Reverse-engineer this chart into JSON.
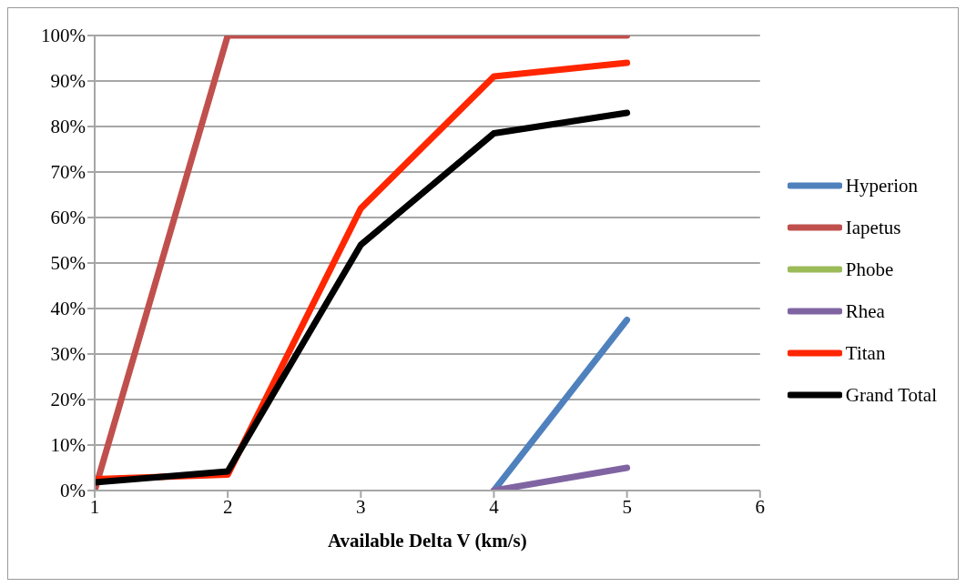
{
  "chart_data": {
    "type": "line",
    "xlabel": "Available Delta V (km/s)",
    "series": [
      {
        "name": "Hyperion",
        "color": "#4f81bd",
        "x": [
          4,
          5
        ],
        "values": [
          0,
          37.5
        ]
      },
      {
        "name": "Iapetus",
        "color": "#c0504d",
        "x": [
          1,
          2,
          3,
          4,
          5
        ],
        "values": [
          0,
          100,
          100,
          100,
          100
        ]
      },
      {
        "name": "Phobe",
        "color": "#9bbb59"
      },
      {
        "name": "Rhea",
        "color": "#8064a2",
        "x": [
          4,
          5
        ],
        "values": [
          0,
          5
        ]
      },
      {
        "name": "Titan",
        "color": "#ff2600",
        "x": [
          1,
          2,
          3,
          4,
          5
        ],
        "values": [
          2.5,
          3.5,
          62,
          91,
          94
        ]
      },
      {
        "name": "Grand Total",
        "color": "#000000",
        "x": [
          1,
          2,
          3,
          4,
          5
        ],
        "values": [
          1.8,
          4.2,
          54,
          78.5,
          83
        ]
      }
    ],
    "xlim": [
      1,
      6
    ],
    "xticks": [
      1,
      2,
      3,
      4,
      5,
      6
    ],
    "ylim": [
      0,
      100
    ],
    "yticks": [
      {
        "value": 0,
        "label": "0%"
      },
      {
        "value": 10,
        "label": "10%"
      },
      {
        "value": 20,
        "label": "20%"
      },
      {
        "value": 30,
        "label": "30%"
      },
      {
        "value": 40,
        "label": "40%"
      },
      {
        "value": 50,
        "label": "50%"
      },
      {
        "value": 60,
        "label": "60%"
      },
      {
        "value": 70,
        "label": "70%"
      },
      {
        "value": 80,
        "label": "80%"
      },
      {
        "value": 90,
        "label": "90%"
      },
      {
        "value": 100,
        "label": "100%"
      }
    ],
    "grid": "y",
    "legend": "right",
    "marker": "none",
    "line_style": "solid"
  }
}
